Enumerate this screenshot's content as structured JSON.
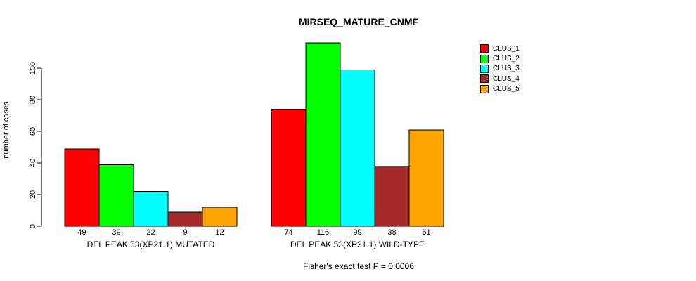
{
  "chart_data": {
    "type": "bar",
    "title": "MIRSEQ_MATURE_CNMF",
    "ylabel": "number of cases",
    "xlabel": "",
    "yticks": [
      0,
      20,
      40,
      60,
      80,
      100
    ],
    "ylim": [
      0,
      116
    ],
    "grid": false,
    "legend_position": "top-right",
    "bar_value_labels_shown": true,
    "categories": [
      "DEL PEAK 53(XP21.1) MUTATED",
      "DEL PEAK 53(XP21.1) WILD-TYPE"
    ],
    "series": [
      {
        "name": "CLUS_1",
        "color": "#ff0000",
        "values": [
          49,
          74
        ]
      },
      {
        "name": "CLUS_2",
        "color": "#00ff00",
        "values": [
          39,
          116
        ]
      },
      {
        "name": "CLUS_3",
        "color": "#00ffff",
        "values": [
          22,
          99
        ]
      },
      {
        "name": "CLUS_4",
        "color": "#a52a2a",
        "values": [
          9,
          38
        ]
      },
      {
        "name": "CLUS_5",
        "color": "#ffa500",
        "values": [
          12,
          61
        ]
      }
    ],
    "annotation": "Fisher's exact test P = 0.0006",
    "bar_border_color": "#000000",
    "axis_color": "#000000"
  }
}
